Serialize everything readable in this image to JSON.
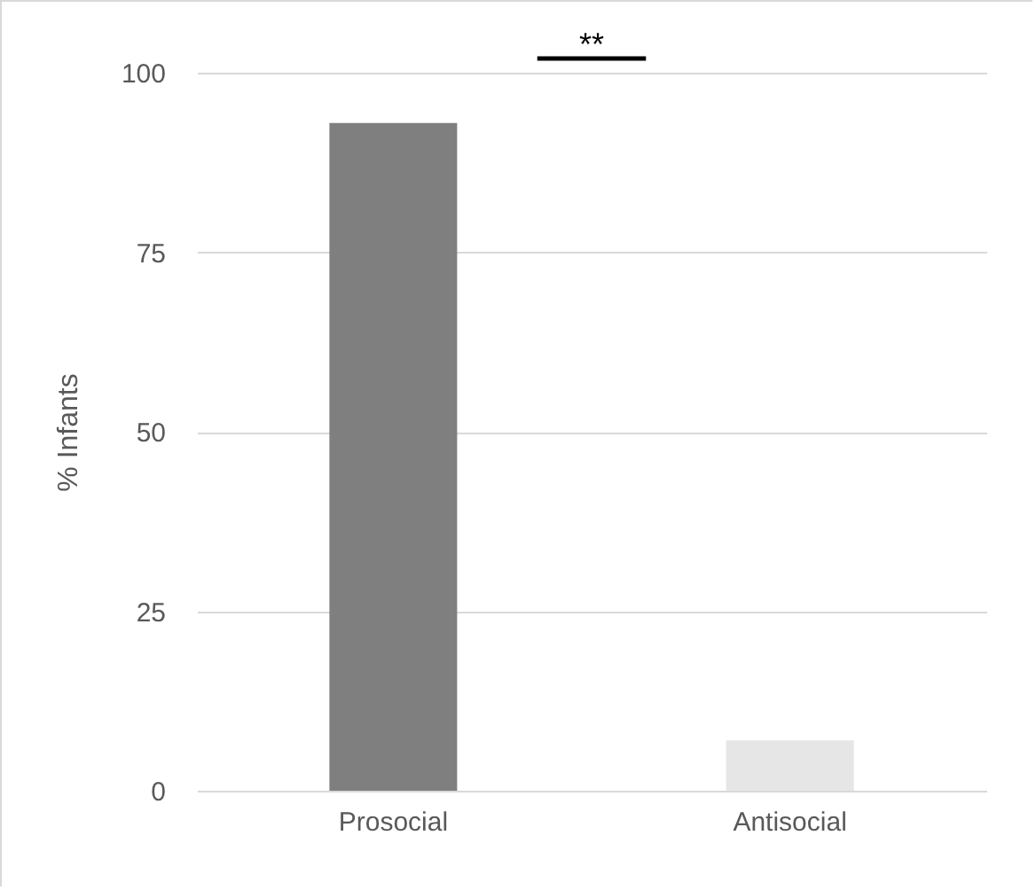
{
  "chart_data": {
    "type": "bar",
    "categories": [
      "Prosocial",
      "Antisocial"
    ],
    "values": [
      93,
      7
    ],
    "colors": [
      "#7f7f7f",
      "#e7e6e6"
    ],
    "ylabel": "% Infants",
    "ylim": [
      0,
      100
    ],
    "yticks": [
      0,
      25,
      50,
      75,
      100
    ],
    "grid": "y",
    "annotations": [
      "**"
    ]
  }
}
